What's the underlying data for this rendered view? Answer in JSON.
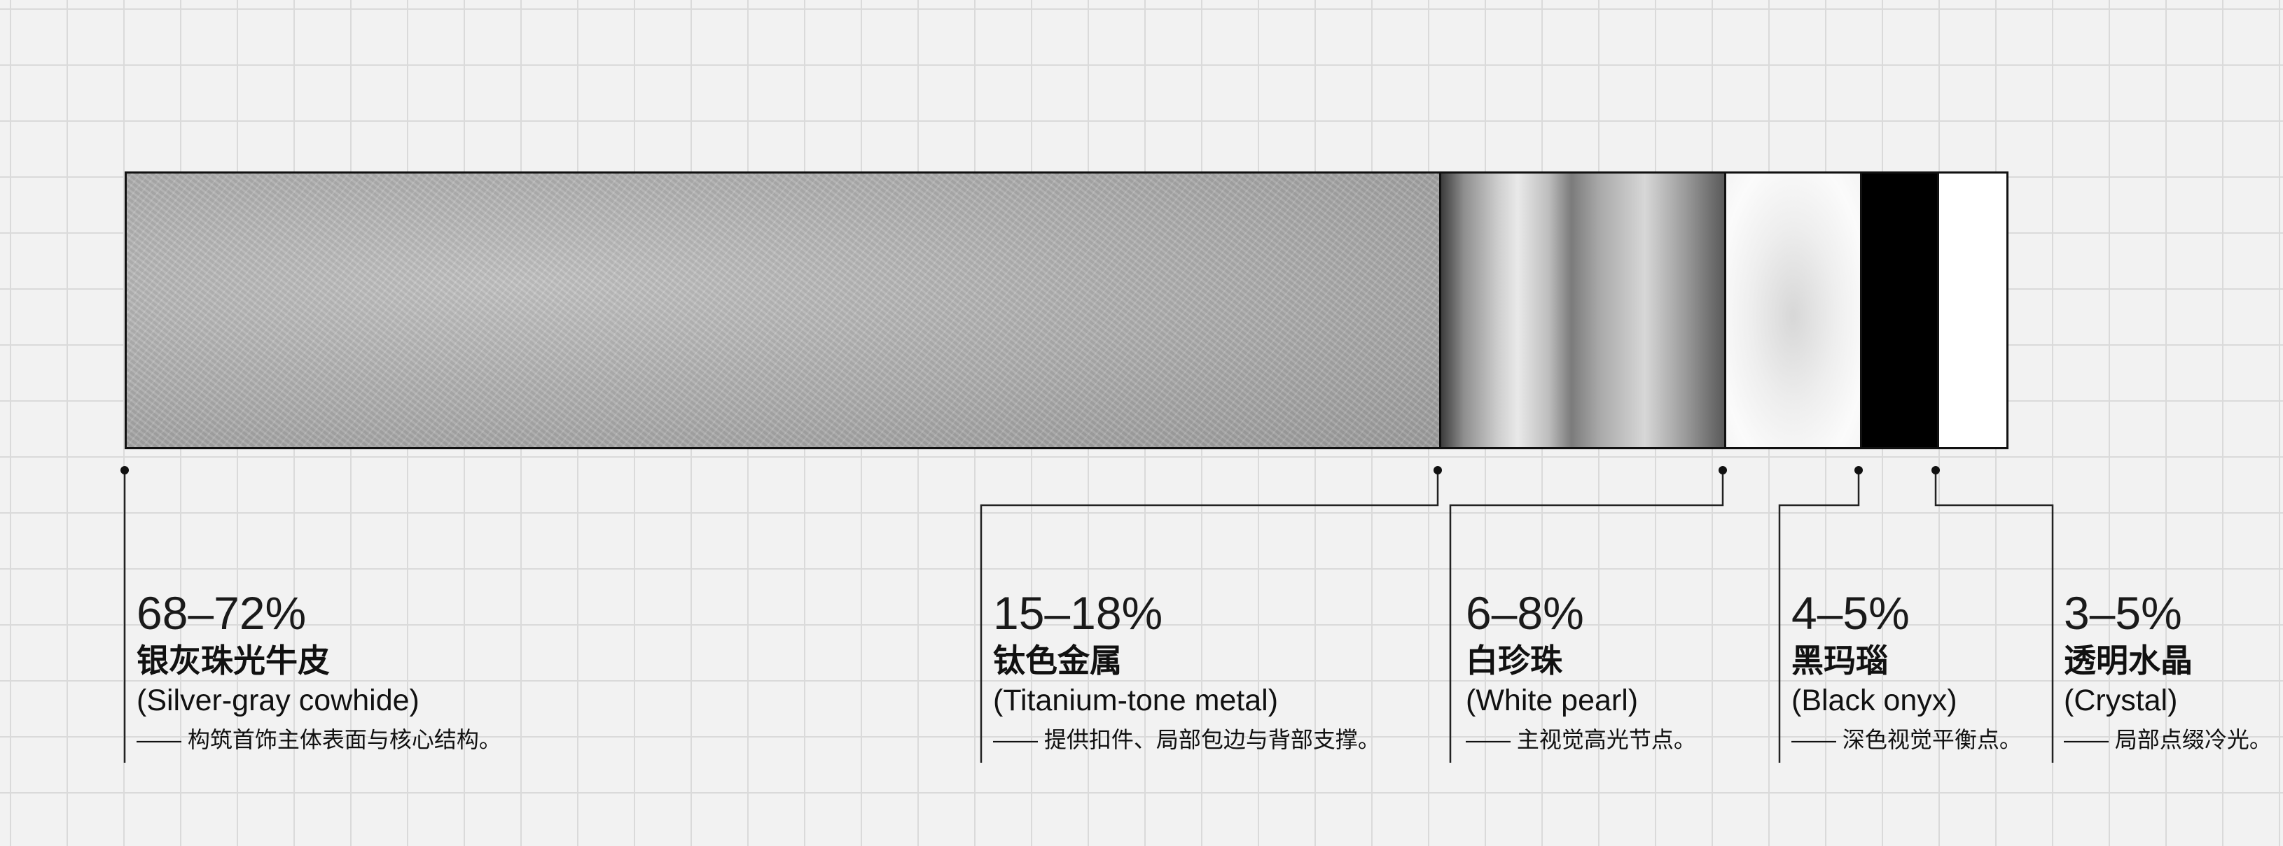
{
  "materials": [
    {
      "id": "leather",
      "percent": "68–72%",
      "name_zh": "银灰珠光牛皮",
      "name_en": "(Silver-gray cowhide)",
      "note": "—— 构筑首饰主体表面与核心结构。",
      "share": 0.7,
      "color": "#adadad"
    },
    {
      "id": "metal",
      "percent": "15–18%",
      "name_zh": "钛色金属",
      "name_en": "(Titanium-tone metal)",
      "note": "—— 提供扣件、局部包边与背部支撑。",
      "share": 0.165,
      "color": "#9c9c9c"
    },
    {
      "id": "pearl",
      "percent": "6–8%",
      "name_zh": "白珍珠",
      "name_en": "(White pearl)",
      "note": "—— 主视觉高光节点。",
      "share": 0.07,
      "color": "#f0f0f0"
    },
    {
      "id": "onyx",
      "percent": "4–5%",
      "name_zh": "黑玛瑙",
      "name_en": "(Black onyx)",
      "note": "—— 深色视觉平衡点。",
      "share": 0.045,
      "color": "#000000"
    },
    {
      "id": "crystal",
      "percent": "3–5%",
      "name_zh": "透明水晶",
      "name_en": "(Crystal)",
      "note": "—— 局部点缀冷光。",
      "share": 0.04,
      "color": "#ffffff"
    }
  ]
}
